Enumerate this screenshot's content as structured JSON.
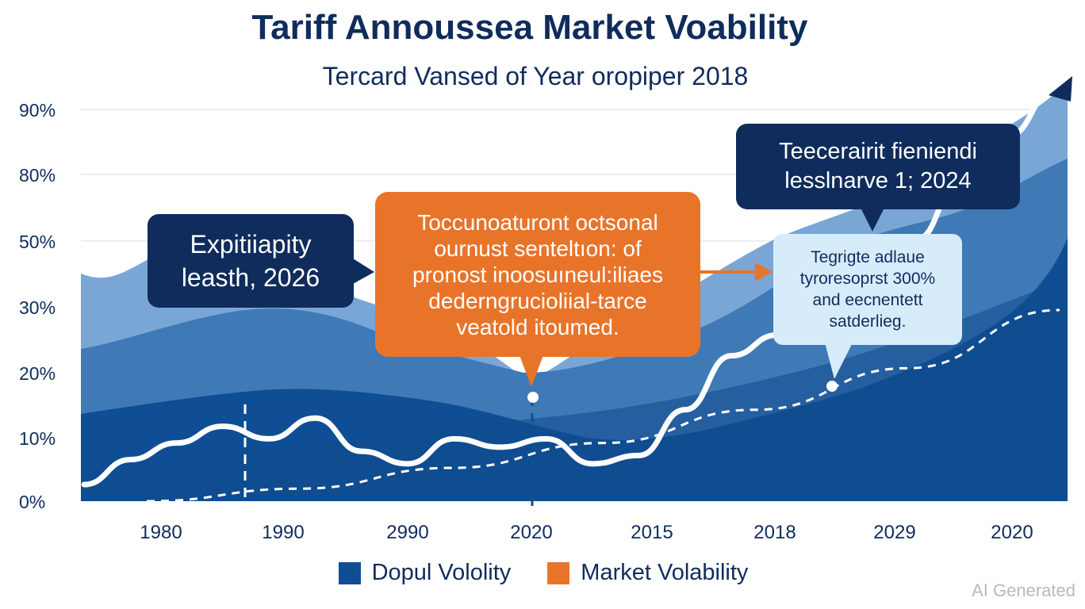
{
  "chart_data": {
    "type": "area",
    "title": "Tariff Annoussea Market Voability",
    "subtitle": "Tercard Vansed of Year oropiper 2018",
    "y_tick_labels": [
      "0%",
      "10%",
      "20%",
      "30%",
      "50%",
      "80%",
      "90%"
    ],
    "x_tick_labels": [
      "1980",
      "1990",
      "2990",
      "2020",
      "2015",
      "2018",
      "2029",
      "2020"
    ],
    "series": [
      {
        "name": "Dopul Vololity",
        "color": "#0f4e94",
        "values": [
          22,
          33,
          42,
          48,
          46,
          42,
          37,
          32,
          28,
          24,
          32,
          46,
          66,
          76,
          95
        ]
      },
      {
        "name": "Market Volability",
        "color": "#e8742a",
        "values": [
          4,
          10,
          14,
          18,
          15,
          20,
          12,
          9,
          15,
          13,
          15,
          9,
          11,
          22,
          35,
          40,
          45,
          52,
          63,
          78,
          88,
          99
        ]
      }
    ],
    "trend": {
      "style": "dashed",
      "values": [
        0,
        3,
        8,
        14,
        22,
        32,
        46
      ]
    },
    "legend_position": "bottom",
    "grid": true
  },
  "callouts": {
    "left": "Expitiiapity\nleasth, 2026",
    "center": "Toccunoaturont octsonal\nournust senteltıon: of\npronost inoosuıneul:iliaes\ndederngrucioliial-tarce\nveatold itoumed.",
    "top_right": "Teecerairit fieniendi\nlesslnarve 1; 2024",
    "light": "Tegrigte adlaue\ntyroresoprst 300%\nand eecnentett\nsatderlieg."
  },
  "watermark": "AI Generated",
  "colors": {
    "navy": "#0f2c5c",
    "dark_blue": "#0f4e94",
    "mid_blue": "#3f79b6",
    "light_blue": "#7aa6d6",
    "orange": "#e8742a",
    "pale_blue": "#d7ecfb"
  }
}
